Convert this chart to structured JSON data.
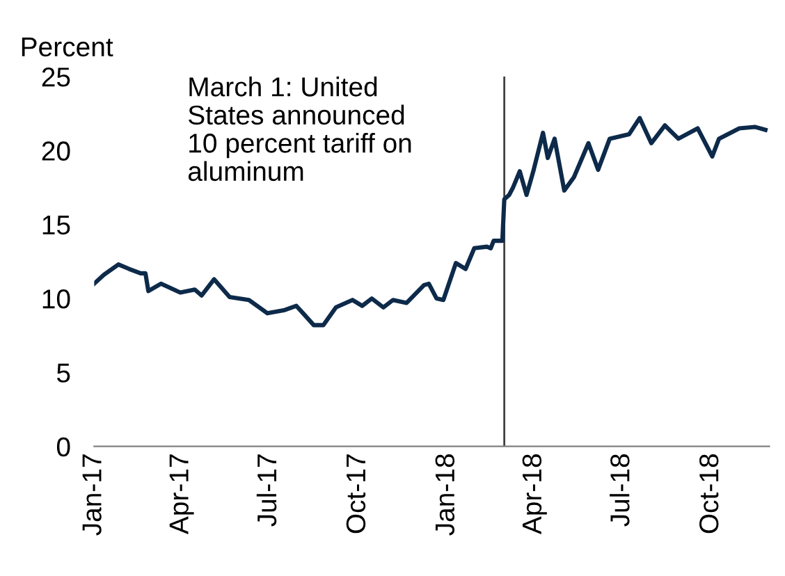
{
  "chart_data": {
    "type": "line",
    "ylabel": "Percent",
    "annotations": [
      "March 1: United\nStates announced\n10 percent tariff on\naluminum"
    ],
    "ref_lines": [
      {
        "axis": "x",
        "value": "2018-03-01",
        "color": "#404040"
      }
    ],
    "x": [
      "2017-01-01",
      "2017-01-11",
      "2017-01-26",
      "2017-02-06",
      "2017-02-18",
      "2017-02-23",
      "2017-02-26",
      "2017-03-11",
      "2017-03-31",
      "2017-04-15",
      "2017-04-22",
      "2017-05-05",
      "2017-05-21",
      "2017-06-10",
      "2017-06-29",
      "2017-07-16",
      "2017-07-29",
      "2017-08-05",
      "2017-08-16",
      "2017-08-26",
      "2017-09-08",
      "2017-09-25",
      "2017-10-05",
      "2017-10-15",
      "2017-10-27",
      "2017-11-06",
      "2017-11-20",
      "2017-12-08",
      "2017-12-13",
      "2017-12-21",
      "2017-12-28",
      "2018-01-10",
      "2018-01-20",
      "2018-01-29",
      "2018-02-11",
      "2018-02-15",
      "2018-02-18",
      "2018-02-27",
      "2018-03-01",
      "2018-03-06",
      "2018-03-10",
      "2018-03-17",
      "2018-03-24",
      "2018-03-31",
      "2018-04-10",
      "2018-04-15",
      "2018-04-22",
      "2018-05-02",
      "2018-05-12",
      "2018-05-27",
      "2018-06-06",
      "2018-06-18",
      "2018-07-08",
      "2018-07-19",
      "2018-07-31",
      "2018-08-14",
      "2018-08-28",
      "2018-09-17",
      "2018-10-02",
      "2018-10-09",
      "2018-10-30",
      "2018-11-15",
      "2018-11-26"
    ],
    "series": [
      {
        "color": "#0d2a4a",
        "values": [
          11.0,
          11.6,
          12.3,
          12.0,
          11.7,
          11.7,
          10.5,
          11.0,
          10.4,
          10.6,
          10.2,
          11.3,
          10.1,
          9.9,
          9.0,
          9.2,
          9.5,
          9.0,
          8.2,
          8.2,
          9.4,
          9.9,
          9.5,
          10.0,
          9.4,
          9.9,
          9.7,
          10.9,
          11.0,
          10.0,
          9.9,
          12.4,
          12.0,
          13.4,
          13.5,
          13.4,
          13.9,
          13.9,
          16.7,
          17.0,
          17.5,
          18.6,
          17.0,
          18.6,
          21.2,
          19.5,
          20.8,
          17.3,
          18.2,
          20.5,
          18.7,
          20.8,
          21.1,
          22.2,
          20.5,
          21.7,
          20.8,
          21.5,
          19.6,
          20.8,
          21.5,
          21.6,
          21.4
        ]
      }
    ],
    "xlim": [
      "2017-01-01",
      "2018-11-30"
    ],
    "xticks": [
      {
        "value": "2017-01-01",
        "label": "Jan-17"
      },
      {
        "value": "2017-04-01",
        "label": "Apr-17"
      },
      {
        "value": "2017-07-01",
        "label": "Jul-17"
      },
      {
        "value": "2017-10-01",
        "label": "Oct-17"
      },
      {
        "value": "2018-01-01",
        "label": "Jan-18"
      },
      {
        "value": "2018-04-01",
        "label": "Apr-18"
      },
      {
        "value": "2018-07-01",
        "label": "Jul-18"
      },
      {
        "value": "2018-10-01",
        "label": "Oct-18"
      }
    ],
    "ylim": [
      0,
      25
    ],
    "yticks": [
      0,
      5,
      10,
      15,
      20,
      25
    ],
    "grid": false,
    "legend": false
  }
}
